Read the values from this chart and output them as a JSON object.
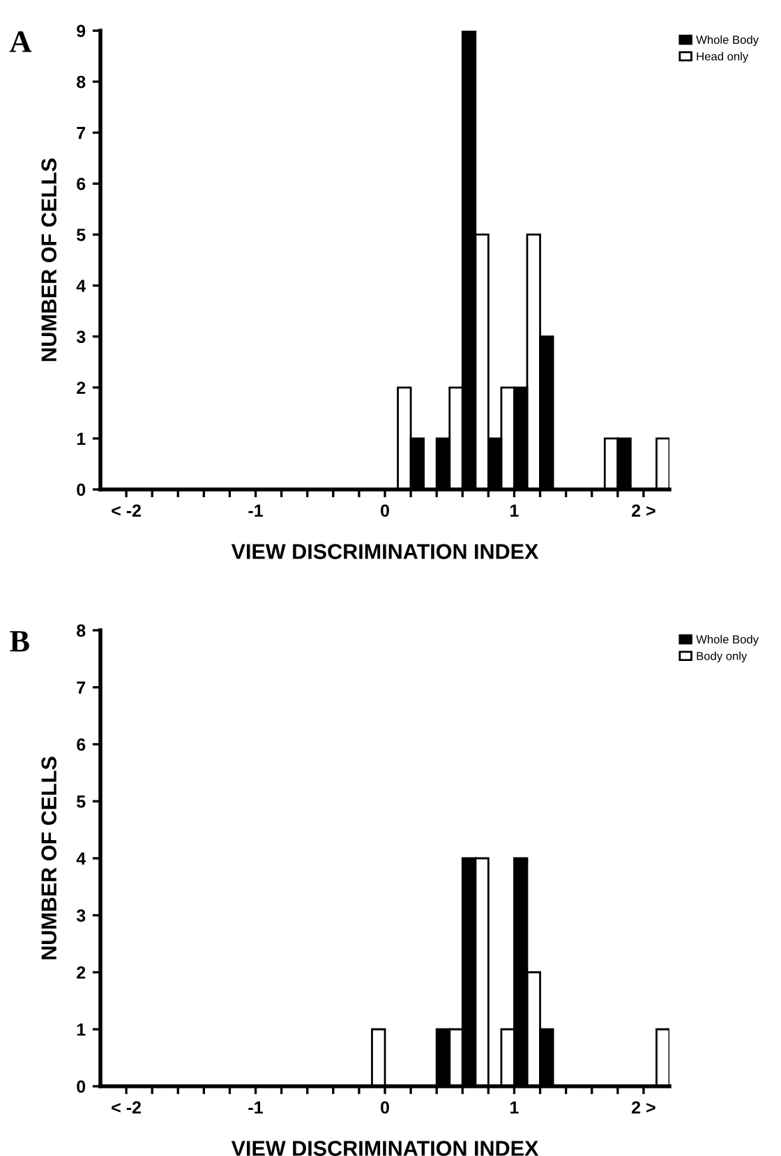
{
  "chart_data": [
    {
      "type": "bar",
      "title": "A",
      "xlabel": "VIEW DISCRIMINATION INDEX",
      "ylabel": "NUMBER OF CELLS",
      "x": [
        0,
        0.2,
        0.4,
        0.6,
        0.8,
        1.0,
        1.2,
        1.4,
        1.6,
        1.8,
        2.0,
        2.2
      ],
      "series": [
        {
          "name": "Head only",
          "color": "#ffffff",
          "values": [
            0,
            2,
            0,
            2,
            5,
            2,
            5,
            0,
            0,
            1,
            0,
            1
          ]
        },
        {
          "name": "Whole Body",
          "color": "#000000",
          "values": [
            0,
            1,
            1,
            9,
            1,
            2,
            3,
            0,
            0,
            1,
            0,
            0
          ]
        }
      ],
      "xlim": [
        -2.2,
        2.2
      ],
      "xticks": [
        {
          "value": -2,
          "label": "< -2"
        },
        {
          "value": -1.8,
          "label": null
        },
        {
          "value": -1.6,
          "label": null
        },
        {
          "value": -1.4,
          "label": null
        },
        {
          "value": -1.2,
          "label": null
        },
        {
          "value": -1,
          "label": "-1"
        },
        {
          "value": -0.8,
          "label": null
        },
        {
          "value": -0.6,
          "label": null
        },
        {
          "value": -0.4,
          "label": null
        },
        {
          "value": -0.2,
          "label": null
        },
        0,
        {
          "value": 0.2,
          "label": null
        },
        {
          "value": 0.4,
          "label": null
        },
        {
          "value": 0.6,
          "label": null
        },
        {
          "value": 0.8,
          "label": null
        },
        1,
        {
          "value": 1.2,
          "label": null
        },
        {
          "value": 1.4,
          "label": null
        },
        {
          "value": 1.6,
          "label": null
        },
        {
          "value": 1.8,
          "label": null
        },
        {
          "value": 2,
          "label": "2 >"
        }
      ],
      "ylim": [
        0,
        9
      ],
      "yticks": [
        0,
        1,
        2,
        3,
        4,
        5,
        6,
        7,
        8,
        9
      ],
      "grid": false,
      "legend": "top right"
    },
    {
      "type": "bar",
      "title": "B",
      "xlabel": "VIEW DISCRIMINATION INDEX",
      "ylabel": "NUMBER OF CELLS",
      "x": [
        0,
        0.2,
        0.4,
        0.6,
        0.8,
        1.0,
        1.2,
        1.4,
        1.6,
        1.8,
        2.0,
        2.2
      ],
      "series": [
        {
          "name": "Body only",
          "color": "#ffffff",
          "values": [
            1,
            0,
            0,
            1,
            4,
            1,
            2,
            0,
            0,
            0,
            0,
            1
          ]
        },
        {
          "name": "Whole Body",
          "color": "#000000",
          "values": [
            0,
            0,
            1,
            4,
            0,
            4,
            1,
            0,
            0,
            0,
            0,
            0
          ]
        }
      ],
      "xlim": [
        -2.2,
        2.2
      ],
      "xticks": [
        {
          "value": -2,
          "label": "< -2"
        },
        {
          "value": -1.8,
          "label": null
        },
        {
          "value": -1.6,
          "label": null
        },
        {
          "value": -1.4,
          "label": null
        },
        {
          "value": -1.2,
          "label": null
        },
        {
          "value": -1,
          "label": "-1"
        },
        {
          "value": -0.8,
          "label": null
        },
        {
          "value": -0.6,
          "label": null
        },
        {
          "value": -0.4,
          "label": null
        },
        {
          "value": -0.2,
          "label": null
        },
        0,
        {
          "value": 0.2,
          "label": null
        },
        {
          "value": 0.4,
          "label": null
        },
        {
          "value": 0.6,
          "label": null
        },
        {
          "value": 0.8,
          "label": null
        },
        1,
        {
          "value": 1.2,
          "label": null
        },
        {
          "value": 1.4,
          "label": null
        },
        {
          "value": 1.6,
          "label": null
        },
        {
          "value": 1.8,
          "label": null
        },
        {
          "value": 2,
          "label": "2 >"
        }
      ],
      "ylim": [
        0,
        8
      ],
      "yticks": [
        0,
        1,
        2,
        3,
        4,
        5,
        6,
        7,
        8
      ],
      "grid": false,
      "legend": "top right"
    }
  ]
}
